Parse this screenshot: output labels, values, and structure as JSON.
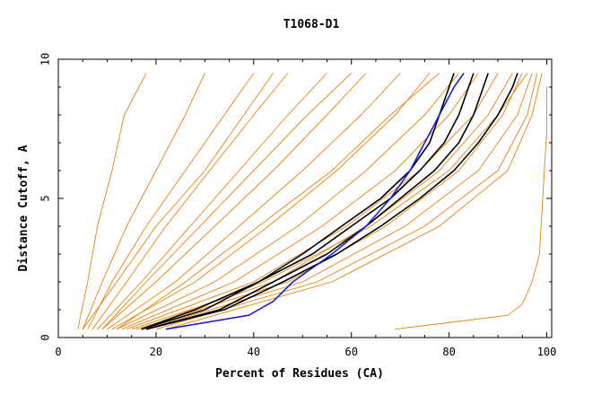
{
  "chart_data": {
    "type": "line",
    "title": "T1068-D1",
    "xlabel": "Percent of Residues (CA)",
    "ylabel": "Distance Cutoff, A",
    "xlim": [
      0,
      101
    ],
    "ylim": [
      0,
      10
    ],
    "x_ticks": [
      0,
      20,
      40,
      60,
      80,
      100
    ],
    "y_ticks": [
      0,
      5,
      10
    ],
    "grid": false,
    "legend": "none",
    "colors": {
      "models": "#e8820c",
      "highlight_black": "#000000",
      "highlight_blue": "#1f1fd6"
    },
    "series": [
      {
        "role": "model",
        "y": [
          0.3,
          2,
          4,
          6,
          8,
          9.5
        ],
        "x": [
          4,
          6,
          8,
          11,
          13.5,
          18
        ]
      },
      {
        "role": "model",
        "y": [
          0.3,
          2,
          4,
          6,
          8,
          9.5
        ],
        "x": [
          5,
          9,
          14,
          20,
          26,
          30
        ]
      },
      {
        "role": "model",
        "y": [
          0.3,
          2,
          4,
          6,
          8,
          9.5
        ],
        "x": [
          6,
          11,
          18,
          26,
          34,
          40
        ]
      },
      {
        "role": "model",
        "y": [
          0.3,
          2,
          4,
          6,
          8,
          9.5
        ],
        "x": [
          7,
          14,
          22,
          31,
          40,
          47
        ]
      },
      {
        "role": "model",
        "y": [
          0.3,
          2,
          4,
          6,
          8,
          9.5
        ],
        "x": [
          8,
          17,
          27,
          37,
          47,
          55
        ]
      },
      {
        "role": "model",
        "y": [
          0.3,
          2,
          4,
          6,
          8,
          9.5
        ],
        "x": [
          9,
          20,
          32,
          44,
          55,
          63
        ]
      },
      {
        "role": "model",
        "y": [
          0.3,
          2,
          4,
          6,
          8,
          9.5
        ],
        "x": [
          10,
          24,
          37,
          50,
          62,
          70
        ]
      },
      {
        "role": "model",
        "y": [
          0.3,
          2,
          4,
          6,
          8,
          9.5
        ],
        "x": [
          11,
          28,
          43,
          57,
          69,
          76
        ]
      },
      {
        "role": "model",
        "y": [
          0.3,
          2,
          4,
          6,
          8,
          9.5
        ],
        "x": [
          12,
          32,
          49,
          63,
          75,
          82
        ]
      },
      {
        "role": "model",
        "y": [
          0.3,
          2,
          4,
          6,
          8,
          9.5
        ],
        "x": [
          13,
          36,
          54,
          69,
          80,
          86
        ]
      },
      {
        "role": "model",
        "y": [
          0.3,
          2,
          4,
          6,
          8,
          9.5
        ],
        "x": [
          14,
          40,
          59,
          74,
          85,
          90
        ]
      },
      {
        "role": "model",
        "y": [
          0.3,
          2,
          4,
          6,
          8,
          9.5
        ],
        "x": [
          15,
          44,
          63,
          78,
          88,
          93
        ]
      },
      {
        "role": "model",
        "y": [
          0.3,
          2,
          4,
          6,
          8,
          9.5
        ],
        "x": [
          16,
          47,
          67,
          82,
          91,
          95
        ]
      },
      {
        "role": "model",
        "y": [
          0.3,
          2,
          4,
          6,
          8,
          9.5
        ],
        "x": [
          18,
          50,
          71,
          86,
          94,
          97
        ]
      },
      {
        "role": "model",
        "y": [
          0.3,
          2,
          4,
          6,
          8,
          9.5
        ],
        "x": [
          20,
          53,
          75,
          90,
          96,
          98
        ]
      },
      {
        "role": "model",
        "y": [
          0.3,
          2,
          4,
          6,
          8,
          9.5
        ],
        "x": [
          22,
          56,
          78,
          92,
          97,
          99
        ]
      },
      {
        "role": "model",
        "y": [
          0.3,
          2,
          4,
          6,
          8,
          9.5
        ],
        "x": [
          5,
          12,
          20,
          30,
          38,
          44
        ]
      },
      {
        "role": "model",
        "y": [
          0.3,
          2,
          4,
          6,
          8,
          9.5
        ],
        "x": [
          9,
          18,
          29,
          40,
          51,
          60
        ]
      },
      {
        "role": "model",
        "y": [
          0.3,
          2,
          4,
          6,
          8,
          9.5
        ],
        "x": [
          12,
          26,
          41,
          56,
          68,
          78
        ]
      },
      {
        "role": "model",
        "y": [
          0.3,
          2,
          4,
          6,
          8,
          9.5
        ],
        "x": [
          17,
          42,
          64,
          80,
          90,
          96
        ]
      },
      {
        "role": "model",
        "y": [
          0.3,
          0.8,
          1.2,
          2,
          3,
          4.5,
          6,
          7.5,
          9
        ],
        "x": [
          69,
          92,
          95,
          97,
          98.5,
          99,
          99.5,
          100,
          100
        ]
      },
      {
        "role": "highlight_black",
        "y": [
          0.3,
          1,
          2,
          3,
          4,
          5,
          6,
          7,
          8,
          9,
          9.5
        ],
        "x": [
          17,
          30,
          41,
          50,
          58,
          66,
          72,
          76,
          78,
          80,
          81
        ]
      },
      {
        "role": "highlight_black",
        "y": [
          0.3,
          1,
          2,
          3,
          4,
          5,
          6,
          7,
          8,
          9,
          9.5
        ],
        "x": [
          17,
          28,
          41,
          52,
          60,
          68,
          74,
          79,
          82,
          84,
          85
        ]
      },
      {
        "role": "highlight_black",
        "y": [
          0.3,
          1,
          2,
          3,
          4,
          5,
          6,
          7,
          8,
          9,
          9.5
        ],
        "x": [
          18,
          33,
          44,
          55,
          63,
          70,
          77,
          82,
          85,
          87,
          88
        ]
      },
      {
        "role": "highlight_black",
        "y": [
          0.3,
          1,
          2,
          3,
          4,
          5,
          6,
          7,
          8,
          9,
          9.5
        ],
        "x": [
          18,
          34,
          46,
          57,
          66,
          74,
          81,
          86,
          90,
          93,
          94
        ]
      },
      {
        "role": "highlight_blue",
        "y": [
          0.3,
          0.8,
          1.3,
          2,
          3,
          4,
          5,
          6,
          7,
          8,
          9,
          9.5
        ],
        "x": [
          22,
          39,
          44,
          48,
          56,
          63,
          68,
          72,
          75,
          78,
          81,
          83
        ]
      }
    ]
  }
}
